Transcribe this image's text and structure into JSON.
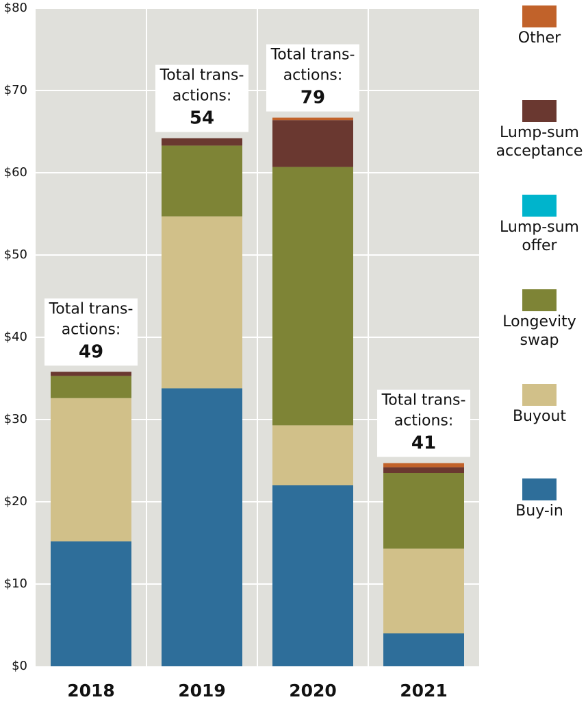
{
  "chart_data": {
    "type": "bar",
    "stacked": true,
    "categories": [
      "2018",
      "2019",
      "2020",
      "2021"
    ],
    "ylim": [
      0,
      80
    ],
    "ytick_labels": [
      "$0",
      "$10",
      "$20",
      "$30",
      "$40",
      "$50",
      "$60",
      "$70",
      "$80"
    ],
    "ytick_values": [
      0,
      10,
      20,
      30,
      40,
      50,
      60,
      70,
      80
    ],
    "grid": true,
    "legend_position": "right",
    "series": [
      {
        "name": "Buy-in",
        "legend_lines": [
          "Buy-in"
        ],
        "color": "#2e6e9a",
        "values": [
          15.2,
          33.8,
          22.0,
          4.0
        ]
      },
      {
        "name": "Buyout",
        "legend_lines": [
          "Buyout"
        ],
        "color": "#d1c089",
        "values": [
          17.4,
          20.9,
          7.3,
          10.3
        ]
      },
      {
        "name": "Longevity swap",
        "legend_lines": [
          "Longevity",
          "swap"
        ],
        "color": "#7e8436",
        "values": [
          2.7,
          8.6,
          31.4,
          9.2
        ]
      },
      {
        "name": "Lump-sum offer",
        "legend_lines": [
          "Lump-sum",
          "offer"
        ],
        "color": "#00b4cc",
        "values": [
          0,
          0,
          0,
          0
        ]
      },
      {
        "name": "Lump-sum acceptance",
        "legend_lines": [
          "Lump-sum",
          "acceptance"
        ],
        "color": "#6a3830",
        "values": [
          0.5,
          0.9,
          5.7,
          0.7
        ]
      },
      {
        "name": "Other",
        "legend_lines": [
          "Other"
        ],
        "color": "#c1622a",
        "values": [
          0,
          0,
          0.3,
          0.5
        ]
      }
    ],
    "annotations": [
      {
        "category": "2018",
        "lines": [
          "Total trans-",
          "actions:"
        ],
        "count": "49"
      },
      {
        "category": "2019",
        "lines": [
          "Total trans-",
          "actions:"
        ],
        "count": "54"
      },
      {
        "category": "2020",
        "lines": [
          "Total trans-",
          "actions:"
        ],
        "count": "79"
      },
      {
        "category": "2021",
        "lines": [
          "Total trans-",
          "actions:"
        ],
        "count": "41"
      }
    ]
  }
}
